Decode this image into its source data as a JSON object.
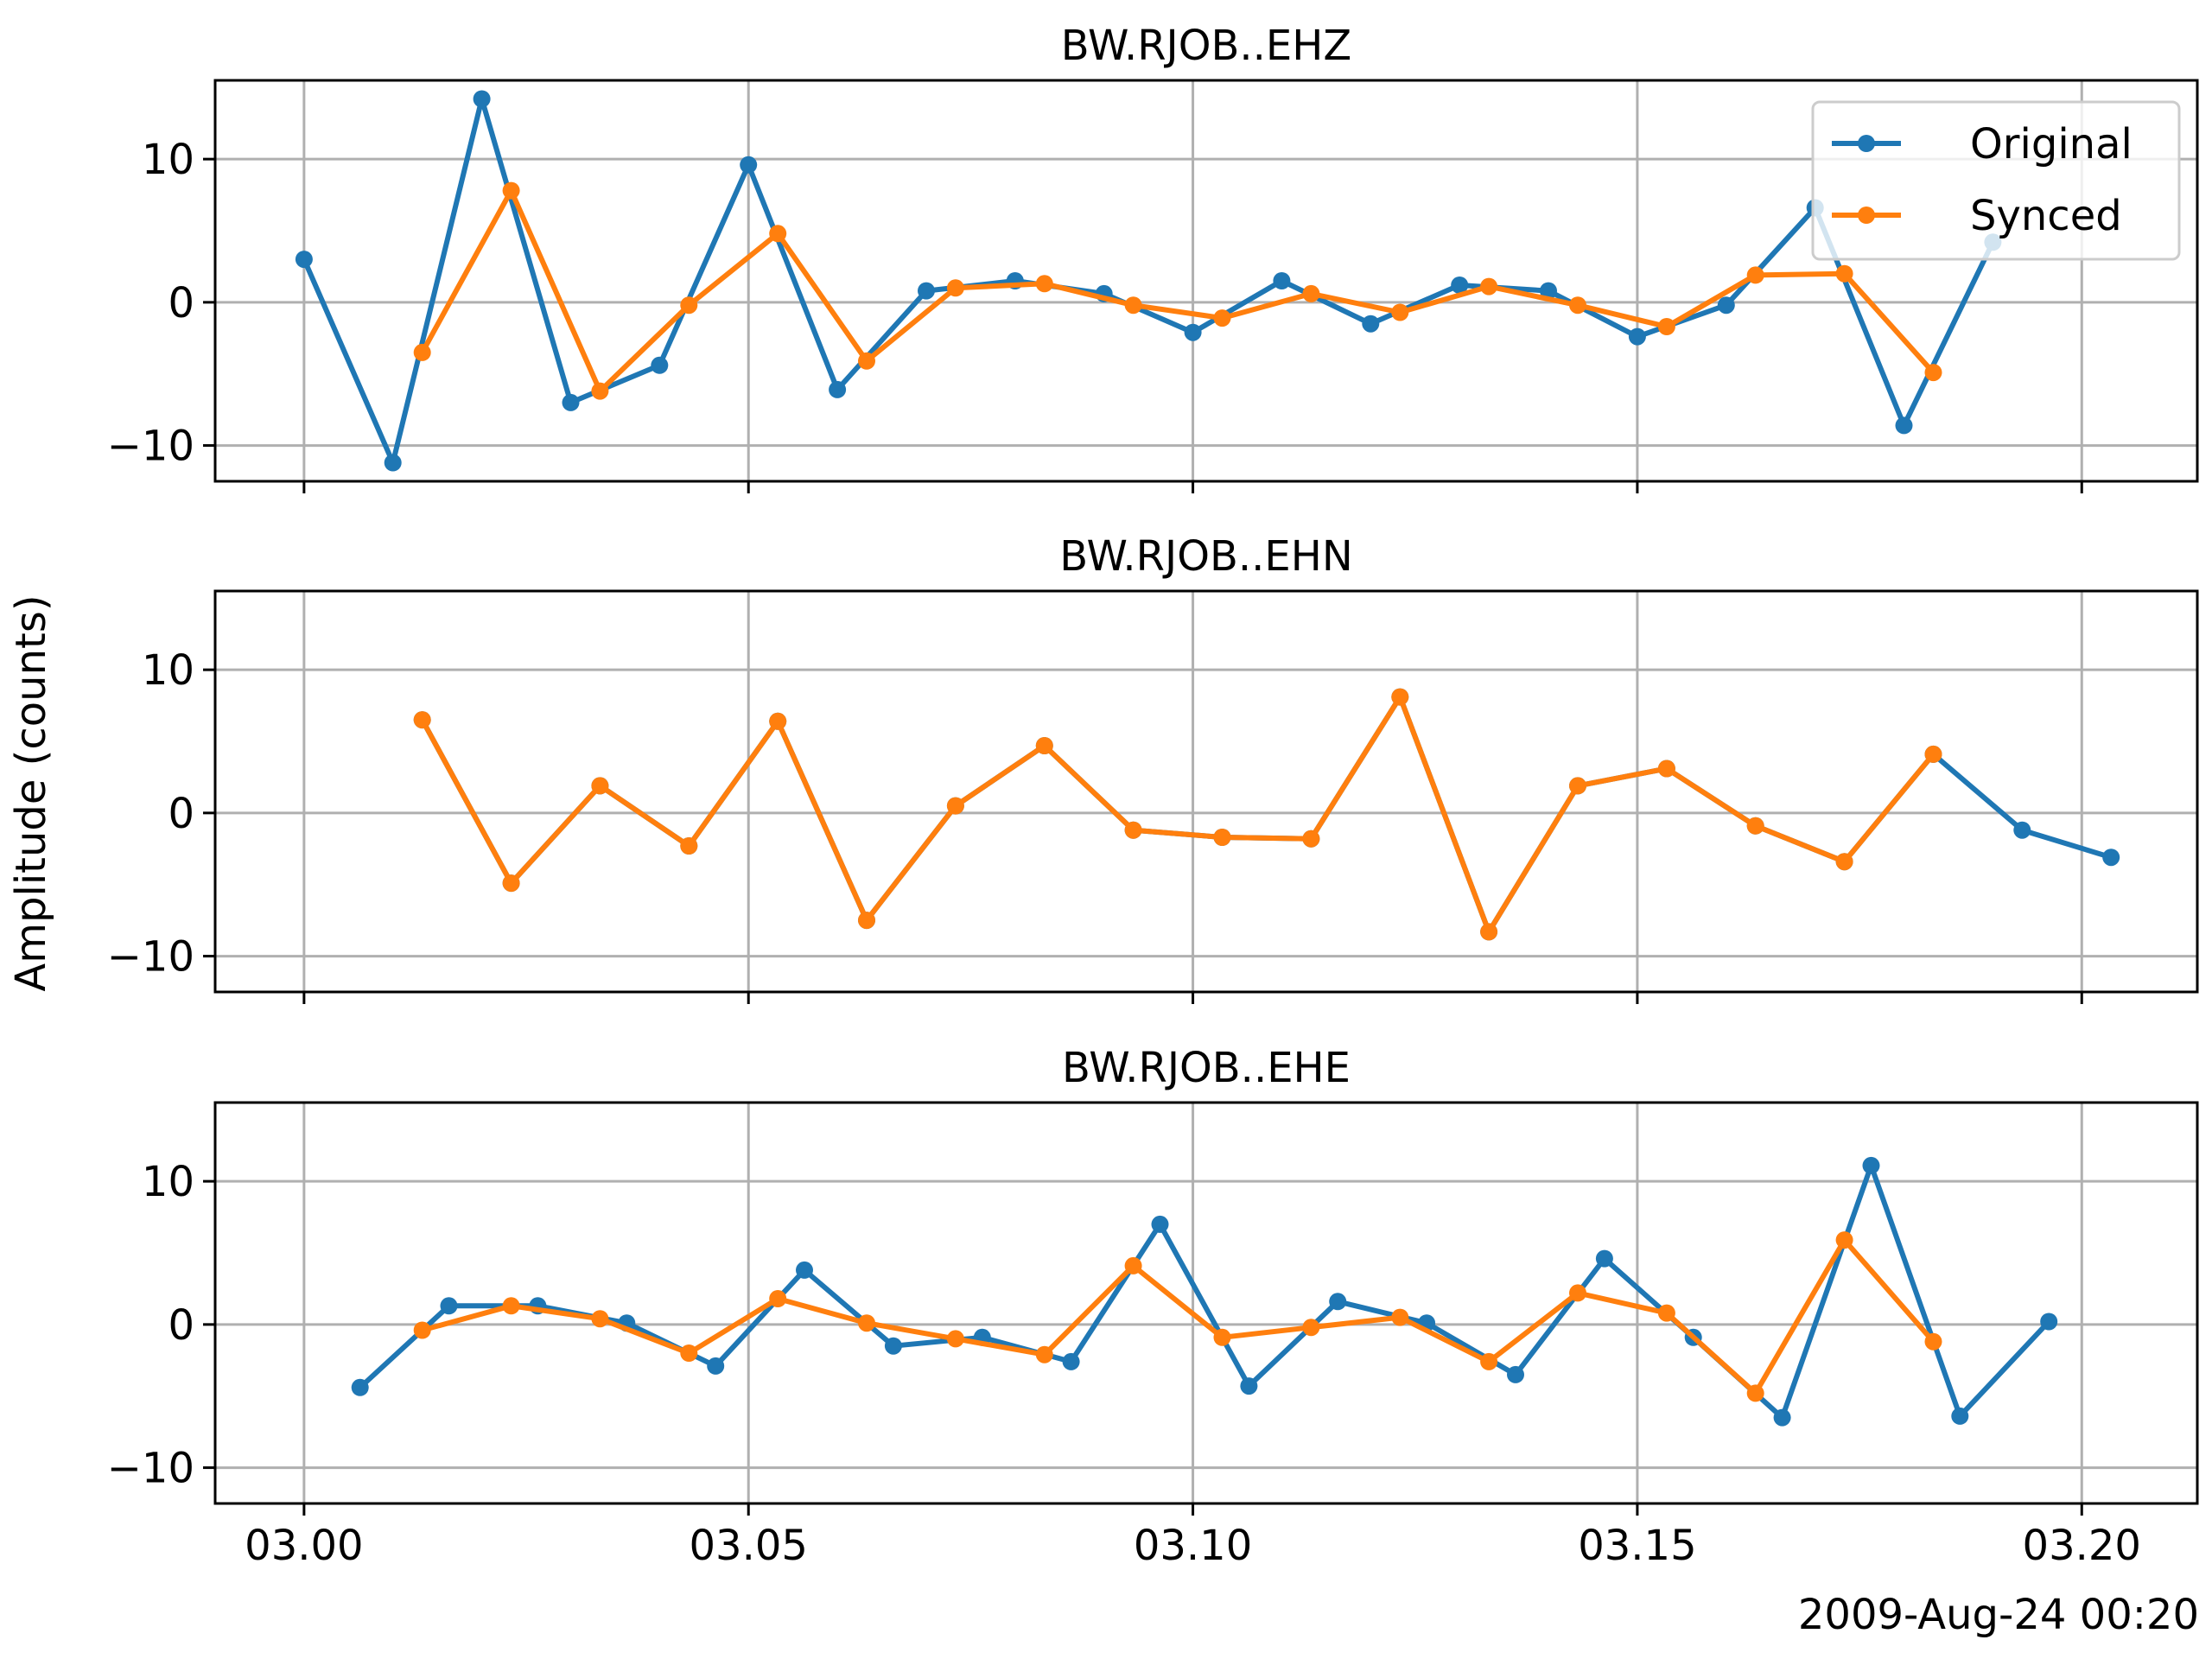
{
  "ylabel": "Amplitude (counts)",
  "time_offset_label": "2009-Aug-24 00:20",
  "legend": {
    "placement": "upper right of top panel",
    "entries": [
      {
        "label": "Original",
        "color": "#1f77b4"
      },
      {
        "label": "Synced",
        "color": "#ff7f0e"
      }
    ]
  },
  "chart_data": [
    {
      "type": "line",
      "title": "BW.RJOB..EHZ",
      "x_unit": "seconds (03.xx)",
      "xlim": [
        2.99,
        3.213
      ],
      "ylim": [
        -12.5,
        15.5
      ],
      "yticks": [
        -10,
        0,
        10
      ],
      "xticks": [
        "03.00",
        "03.05",
        "03.10",
        "03.15",
        "03.20"
      ],
      "xtick_values": [
        3.0,
        3.05,
        3.1,
        3.15,
        3.2
      ],
      "grid": true,
      "series": [
        {
          "name": "Original",
          "color": "#1f77b4",
          "x": [
            3.0,
            3.01,
            3.02,
            3.03,
            3.04,
            3.05,
            3.06,
            3.07,
            3.08,
            3.09,
            3.1,
            3.11,
            3.12,
            3.13,
            3.14,
            3.15,
            3.16,
            3.17,
            3.18,
            3.19
          ],
          "y": [
            3.0,
            -11.2,
            14.2,
            -7.0,
            -4.4,
            9.6,
            -6.1,
            0.8,
            1.5,
            0.6,
            -2.1,
            1.5,
            -1.5,
            1.2,
            0.8,
            -2.4,
            -0.2,
            6.6,
            -8.6,
            4.2
          ]
        },
        {
          "name": "Synced",
          "color": "#ff7f0e",
          "x": [
            3.0133,
            3.0233,
            3.0333,
            3.0433,
            3.0533,
            3.0633,
            3.0733,
            3.0833,
            3.0933,
            3.1033,
            3.1133,
            3.1233,
            3.1333,
            3.1433,
            3.1533,
            3.1633,
            3.1733,
            3.1833
          ],
          "y": [
            -3.5,
            7.8,
            -6.2,
            -0.2,
            4.8,
            -4.1,
            1.0,
            1.3,
            -0.2,
            -1.1,
            0.6,
            -0.7,
            1.1,
            -0.2,
            -1.7,
            1.9,
            2.0,
            -4.9
          ]
        }
      ]
    },
    {
      "type": "line",
      "title": "BW.RJOB..EHN",
      "x_unit": "seconds (03.xx)",
      "xlim": [
        2.99,
        3.213
      ],
      "ylim": [
        -12.5,
        15.5
      ],
      "yticks": [
        -10,
        0,
        10
      ],
      "xticks": [
        "03.00",
        "03.05",
        "03.10",
        "03.15",
        "03.20"
      ],
      "xtick_values": [
        3.0,
        3.05,
        3.1,
        3.15,
        3.2
      ],
      "grid": true,
      "series": [
        {
          "name": "Original",
          "color": "#1f77b4",
          "x": [
            3.0133,
            3.0233,
            3.0333,
            3.0433,
            3.0533,
            3.0633,
            3.0733,
            3.0833,
            3.0933,
            3.1033,
            3.1133,
            3.1233,
            3.1333,
            3.1433,
            3.1533,
            3.1633,
            3.1733,
            3.1833,
            3.1933,
            3.2033
          ],
          "y": [
            6.5,
            -4.9,
            1.9,
            -2.3,
            6.4,
            -7.5,
            0.5,
            4.7,
            -1.2,
            -1.7,
            -1.8,
            8.1,
            -8.3,
            1.9,
            3.1,
            -0.9,
            -3.4,
            4.1,
            -1.2,
            -3.1
          ]
        },
        {
          "name": "Synced",
          "color": "#ff7f0e",
          "x": [
            3.0133,
            3.0233,
            3.0333,
            3.0433,
            3.0533,
            3.0633,
            3.0733,
            3.0833,
            3.0933,
            3.1033,
            3.1133,
            3.1233,
            3.1333,
            3.1433,
            3.1533,
            3.1633,
            3.1733,
            3.1833
          ],
          "y": [
            6.5,
            -4.9,
            1.9,
            -2.3,
            6.4,
            -7.5,
            0.5,
            4.7,
            -1.2,
            -1.7,
            -1.8,
            8.1,
            -8.3,
            1.9,
            3.1,
            -0.9,
            -3.4,
            4.1
          ]
        }
      ]
    },
    {
      "type": "line",
      "title": "BW.RJOB..EHE",
      "x_unit": "seconds (03.xx)",
      "xlim": [
        2.99,
        3.213
      ],
      "ylim": [
        -12.5,
        15.5
      ],
      "yticks": [
        -10,
        0,
        10
      ],
      "xticks": [
        "03.00",
        "03.05",
        "03.10",
        "03.15",
        "03.20"
      ],
      "xtick_values": [
        3.0,
        3.05,
        3.1,
        3.15,
        3.2
      ],
      "grid": true,
      "series": [
        {
          "name": "Original",
          "color": "#1f77b4",
          "x": [
            3.0063,
            3.0163,
            3.0263,
            3.0363,
            3.0463,
            3.0563,
            3.0663,
            3.0763,
            3.0863,
            3.0963,
            3.1063,
            3.1163,
            3.1263,
            3.1363,
            3.1463,
            3.1563,
            3.1663,
            3.1763,
            3.1863,
            3.1963
          ],
          "y": [
            -4.4,
            1.3,
            1.3,
            0.1,
            -2.9,
            3.8,
            -1.5,
            -0.9,
            -2.6,
            7.0,
            -4.3,
            1.6,
            0.1,
            -3.5,
            4.6,
            -0.9,
            -6.5,
            11.1,
            -6.4,
            0.2
          ]
        },
        {
          "name": "Synced",
          "color": "#ff7f0e",
          "x": [
            3.0133,
            3.0233,
            3.0333,
            3.0433,
            3.0533,
            3.0633,
            3.0733,
            3.0833,
            3.0933,
            3.1033,
            3.1133,
            3.1233,
            3.1333,
            3.1433,
            3.1533,
            3.1633,
            3.1733,
            3.1833
          ],
          "y": [
            -0.4,
            1.3,
            0.4,
            -2.0,
            1.8,
            0.1,
            -1.0,
            -2.1,
            4.1,
            -0.9,
            -0.2,
            0.5,
            -2.6,
            2.2,
            0.8,
            -4.8,
            5.9,
            -1.2
          ]
        }
      ]
    }
  ]
}
